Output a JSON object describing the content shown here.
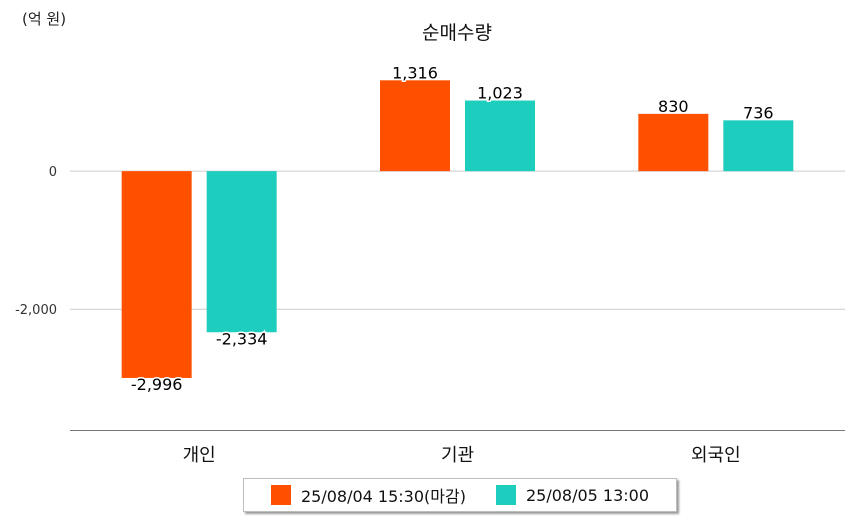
{
  "colors": {
    "series1": "#ff5000",
    "series2": "#1dcdbd",
    "grid": "#cccccc",
    "axis": "#777777"
  },
  "chart_data": {
    "type": "bar",
    "title": "순매수량",
    "unit_label": "(억 원)",
    "categories": [
      "개인",
      "기관",
      "외국인"
    ],
    "series": [
      {
        "name": "25/08/04 15:30(마감)",
        "values": [
          -2996,
          1316,
          830
        ],
        "labels": [
          "-2,996",
          "1,316",
          "830"
        ]
      },
      {
        "name": "25/08/05 13:00",
        "values": [
          -2334,
          1023,
          736
        ],
        "labels": [
          "-2,334",
          "1,023",
          "736"
        ]
      }
    ],
    "y_ticks": [
      0,
      -2000
    ],
    "y_tick_labels": [
      "0",
      "-2,000"
    ],
    "ylim": [
      -3750,
      1900
    ],
    "grid": true,
    "legend_position": "bottom"
  }
}
